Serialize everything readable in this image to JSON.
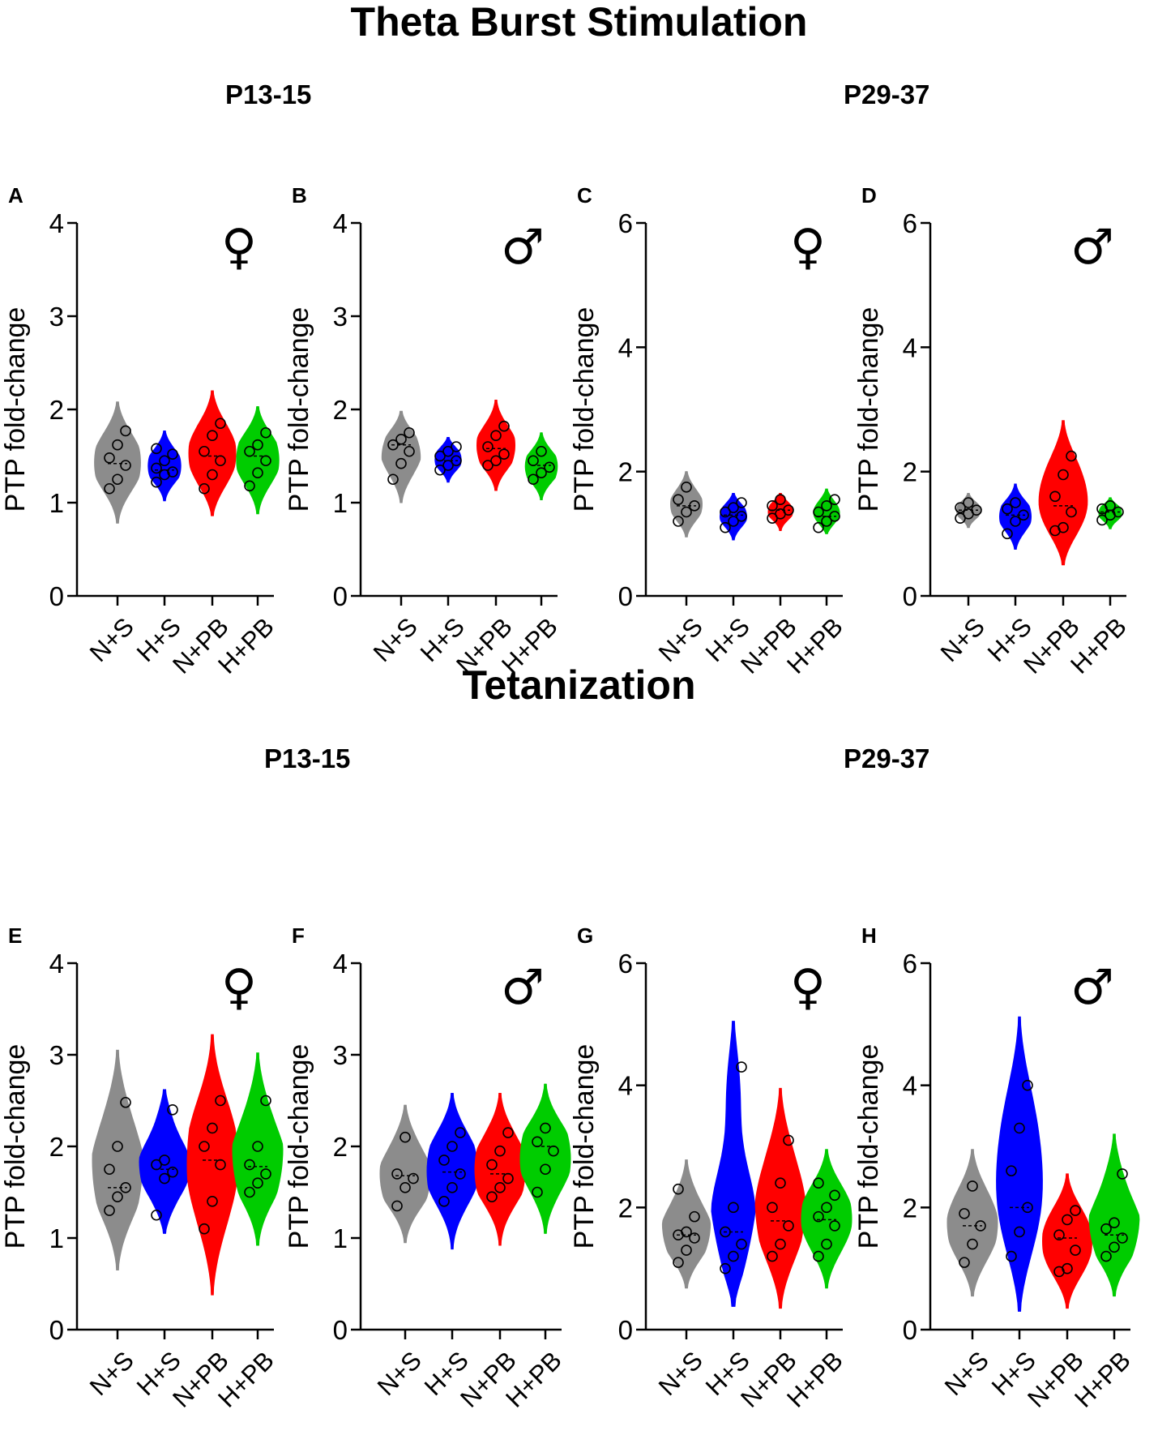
{
  "section_titles": {
    "tbs": "Theta Burst Stimulation",
    "tetanization": "Tetanization"
  },
  "age_labels": {
    "tbs_young": "P13-15",
    "tbs_old": "P29-37",
    "tet_young": "P13-15",
    "tet_old": "P29-37"
  },
  "colors": {
    "N+S": "#8c8c8c",
    "H+S": "#0000ff",
    "N+PB": "#ff0000",
    "H+PB": "#00cc00"
  },
  "chart_data": [
    {
      "panel": "A",
      "type": "violin",
      "title": "♀",
      "sex": "female",
      "protocol": "Theta Burst Stimulation",
      "age": "P13-15",
      "ylabel": "PTP fold-change",
      "ylim": [
        0,
        4
      ],
      "yticks": [
        "0",
        "1",
        "2",
        "3",
        "4"
      ],
      "categories": [
        "N+S",
        "H+S",
        "N+PB",
        "H+PB"
      ],
      "series": [
        {
          "name": "N+S",
          "range": [
            0.78,
            2.08
          ],
          "median": 1.42,
          "points": [
            1.15,
            1.25,
            1.4,
            1.48,
            1.62,
            1.77
          ]
        },
        {
          "name": "H+S",
          "range": [
            1.02,
            1.77
          ],
          "median": 1.35,
          "points": [
            1.22,
            1.3,
            1.33,
            1.37,
            1.45,
            1.52,
            1.58
          ]
        },
        {
          "name": "N+PB",
          "range": [
            0.86,
            2.2
          ],
          "median": 1.5,
          "points": [
            1.15,
            1.3,
            1.45,
            1.55,
            1.72,
            1.85
          ]
        },
        {
          "name": "H+PB",
          "range": [
            0.88,
            2.03
          ],
          "median": 1.5,
          "points": [
            1.18,
            1.32,
            1.45,
            1.55,
            1.62,
            1.75
          ]
        }
      ]
    },
    {
      "panel": "B",
      "type": "violin",
      "title": "♂",
      "sex": "male",
      "protocol": "Theta Burst Stimulation",
      "age": "P13-15",
      "ylabel": "PTP fold-change",
      "ylim": [
        0,
        4
      ],
      "yticks": [
        "0",
        "1",
        "2",
        "3",
        "4"
      ],
      "categories": [
        "N+S",
        "H+S",
        "N+PB",
        "H+PB"
      ],
      "series": [
        {
          "name": "N+S",
          "range": [
            1.0,
            1.98
          ],
          "median": 1.62,
          "points": [
            1.25,
            1.42,
            1.55,
            1.62,
            1.68,
            1.75
          ]
        },
        {
          "name": "H+S",
          "range": [
            1.22,
            1.7
          ],
          "median": 1.45,
          "points": [
            1.35,
            1.4,
            1.45,
            1.5,
            1.55,
            1.6
          ]
        },
        {
          "name": "N+PB",
          "range": [
            1.13,
            2.1
          ],
          "median": 1.58,
          "points": [
            1.4,
            1.45,
            1.52,
            1.6,
            1.72,
            1.82
          ]
        },
        {
          "name": "H+PB",
          "range": [
            1.03,
            1.75
          ],
          "median": 1.4,
          "points": [
            1.25,
            1.32,
            1.38,
            1.45,
            1.55
          ]
        }
      ]
    },
    {
      "panel": "C",
      "type": "violin",
      "title": "♀",
      "sex": "female",
      "protocol": "Theta Burst Stimulation",
      "age": "P29-37",
      "ylabel": "PTP fold-change",
      "ylim": [
        0,
        6
      ],
      "yticks": [
        "0",
        "2",
        "4",
        "6"
      ],
      "categories": [
        "N+S",
        "H+S",
        "N+PB",
        "H+PB"
      ],
      "series": [
        {
          "name": "N+S",
          "range": [
            0.95,
            2.0
          ],
          "median": 1.45,
          "points": [
            1.2,
            1.35,
            1.45,
            1.55,
            1.75
          ]
        },
        {
          "name": "H+S",
          "range": [
            0.9,
            1.65
          ],
          "median": 1.3,
          "points": [
            1.1,
            1.2,
            1.28,
            1.35,
            1.42,
            1.5
          ]
        },
        {
          "name": "N+PB",
          "range": [
            1.05,
            1.65
          ],
          "median": 1.38,
          "points": [
            1.25,
            1.32,
            1.38,
            1.45,
            1.55
          ]
        },
        {
          "name": "H+PB",
          "range": [
            1.0,
            1.72
          ],
          "median": 1.28,
          "points": [
            1.1,
            1.2,
            1.28,
            1.35,
            1.45,
            1.55
          ]
        }
      ]
    },
    {
      "panel": "D",
      "type": "violin",
      "title": "♂",
      "sex": "male",
      "protocol": "Theta Burst Stimulation",
      "age": "P29-37",
      "ylabel": "PTP fold-change",
      "ylim": [
        0,
        6
      ],
      "yticks": [
        "0",
        "2",
        "4",
        "6"
      ],
      "categories": [
        "N+S",
        "H+S",
        "N+PB",
        "H+PB"
      ],
      "series": [
        {
          "name": "N+S",
          "range": [
            1.1,
            1.65
          ],
          "median": 1.38,
          "points": [
            1.25,
            1.32,
            1.38,
            1.42,
            1.5
          ]
        },
        {
          "name": "H+S",
          "range": [
            0.75,
            1.8
          ],
          "median": 1.3,
          "points": [
            1.0,
            1.2,
            1.3,
            1.4,
            1.5
          ]
        },
        {
          "name": "N+PB",
          "range": [
            0.5,
            2.82
          ],
          "median": 1.45,
          "points": [
            1.05,
            1.1,
            1.35,
            1.6,
            1.95,
            2.25
          ]
        },
        {
          "name": "H+PB",
          "range": [
            1.08,
            1.58
          ],
          "median": 1.35,
          "points": [
            1.22,
            1.3,
            1.35,
            1.4,
            1.45
          ]
        }
      ]
    },
    {
      "panel": "E",
      "type": "violin",
      "title": "♀",
      "sex": "female",
      "protocol": "Tetanization",
      "age": "P13-15",
      "ylabel": "PTP fold-change",
      "ylim": [
        0,
        4
      ],
      "yticks": [
        "0",
        "1",
        "2",
        "3",
        "4"
      ],
      "categories": [
        "N+S",
        "H+S",
        "N+PB",
        "H+PB"
      ],
      "series": [
        {
          "name": "N+S",
          "range": [
            0.65,
            3.05
          ],
          "median": 1.55,
          "points": [
            1.3,
            1.45,
            1.55,
            1.75,
            2.0,
            2.48
          ]
        },
        {
          "name": "H+S",
          "range": [
            1.05,
            2.62
          ],
          "median": 1.75,
          "points": [
            1.25,
            1.65,
            1.72,
            1.8,
            1.85,
            2.4
          ]
        },
        {
          "name": "N+PB",
          "range": [
            0.38,
            3.22
          ],
          "median": 1.85,
          "points": [
            1.1,
            1.4,
            1.8,
            2.0,
            2.2,
            2.5
          ]
        },
        {
          "name": "H+PB",
          "range": [
            0.92,
            3.02
          ],
          "median": 1.78,
          "points": [
            1.5,
            1.6,
            1.7,
            1.8,
            2.0,
            2.5
          ]
        }
      ]
    },
    {
      "panel": "F",
      "type": "violin",
      "title": "♂",
      "sex": "male",
      "protocol": "Tetanization",
      "age": "P13-15",
      "ylabel": "PTP fold-change",
      "ylim": [
        0,
        4
      ],
      "yticks": [
        "0",
        "1",
        "2",
        "3",
        "4"
      ],
      "categories": [
        "N+S",
        "H+S",
        "N+PB",
        "H+PB"
      ],
      "series": [
        {
          "name": "N+S",
          "range": [
            0.95,
            2.45
          ],
          "median": 1.68,
          "points": [
            1.35,
            1.55,
            1.65,
            1.7,
            2.1
          ]
        },
        {
          "name": "H+S",
          "range": [
            0.88,
            2.58
          ],
          "median": 1.72,
          "points": [
            1.4,
            1.55,
            1.7,
            1.85,
            2.0,
            2.15
          ]
        },
        {
          "name": "N+PB",
          "range": [
            0.92,
            2.58
          ],
          "median": 1.7,
          "points": [
            1.45,
            1.55,
            1.65,
            1.8,
            1.95,
            2.15
          ]
        },
        {
          "name": "H+PB",
          "range": [
            1.05,
            2.68
          ],
          "median": 2.0,
          "points": [
            1.5,
            1.75,
            1.95,
            2.05,
            2.2
          ]
        }
      ]
    },
    {
      "panel": "G",
      "type": "violin",
      "title": "♀",
      "sex": "female",
      "protocol": "Tetanization",
      "age": "P29-37",
      "ylabel": "PTP fold-change",
      "ylim": [
        0,
        6
      ],
      "yticks": [
        "0",
        "2",
        "4",
        "6"
      ],
      "categories": [
        "N+S",
        "H+S",
        "N+PB",
        "H+PB"
      ],
      "series": [
        {
          "name": "N+S",
          "range": [
            0.68,
            2.78
          ],
          "median": 1.55,
          "points": [
            1.1,
            1.3,
            1.5,
            1.55,
            1.6,
            1.85,
            2.3
          ]
        },
        {
          "name": "H+S",
          "range": [
            0.38,
            5.05
          ],
          "median": 1.6,
          "points": [
            1.0,
            1.2,
            1.4,
            1.6,
            2.0,
            4.3
          ]
        },
        {
          "name": "N+PB",
          "range": [
            0.35,
            3.95
          ],
          "median": 1.78,
          "points": [
            1.2,
            1.4,
            1.7,
            2.0,
            2.4,
            3.1
          ]
        },
        {
          "name": "H+PB",
          "range": [
            0.68,
            2.95
          ],
          "median": 1.8,
          "points": [
            1.2,
            1.4,
            1.7,
            1.85,
            2.0,
            2.2,
            2.4
          ]
        }
      ]
    },
    {
      "panel": "H",
      "type": "violin",
      "title": "♂",
      "sex": "male",
      "protocol": "Tetanization",
      "age": "P29-37",
      "ylabel": "PTP fold-change",
      "ylim": [
        0,
        6
      ],
      "yticks": [
        "0",
        "2",
        "4",
        "6"
      ],
      "categories": [
        "N+S",
        "H+S",
        "N+PB",
        "H+PB"
      ],
      "series": [
        {
          "name": "N+S",
          "range": [
            0.55,
            2.95
          ],
          "median": 1.7,
          "points": [
            1.1,
            1.4,
            1.7,
            1.9,
            2.35
          ]
        },
        {
          "name": "H+S",
          "range": [
            0.3,
            5.12
          ],
          "median": 2.0,
          "points": [
            1.2,
            1.6,
            2.0,
            2.6,
            3.3,
            4.0
          ]
        },
        {
          "name": "N+PB",
          "range": [
            0.35,
            2.55
          ],
          "median": 1.5,
          "points": [
            0.95,
            1.0,
            1.3,
            1.55,
            1.8,
            1.95
          ]
        },
        {
          "name": "H+PB",
          "range": [
            0.55,
            3.2
          ],
          "median": 1.55,
          "points": [
            1.2,
            1.35,
            1.5,
            1.65,
            1.75,
            2.55
          ]
        }
      ]
    }
  ]
}
